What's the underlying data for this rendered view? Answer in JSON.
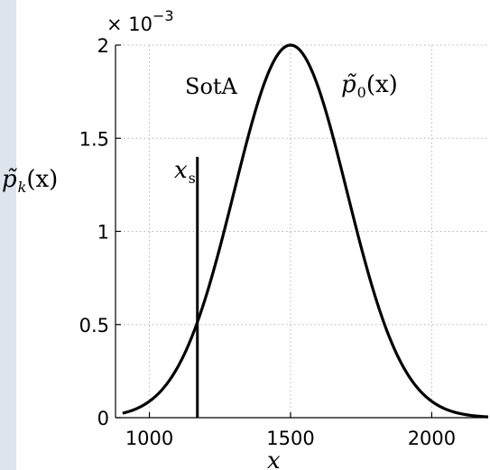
{
  "chart_data": {
    "type": "line",
    "title": "",
    "xlabel": "x",
    "ylabel": "p̃",
    "ylabel_sub": "k",
    "ylabel_arg": "(x)",
    "y_multiplier": "× 10",
    "y_multiplier_exp": "−3",
    "xlim": [
      880,
      2200
    ],
    "ylim": [
      0,
      2
    ],
    "x_ticks": [
      1000,
      1500,
      2000
    ],
    "x_tick_labels": [
      "1000",
      "1500",
      "2000"
    ],
    "y_ticks": [
      0,
      0.5,
      1,
      1.5,
      2
    ],
    "y_tick_labels": [
      "0",
      "0.5",
      "1",
      "1.5",
      "2"
    ],
    "grid": true,
    "series": [
      {
        "label_base": "p̃",
        "label_sub": "0",
        "label_arg": "(x)",
        "distribution": "gaussian",
        "mean": 1500,
        "std": 200,
        "peak": 2,
        "x_start": 905,
        "x_end": 2200
      }
    ],
    "annotations": [
      {
        "type": "vline",
        "x": 1170,
        "y_top": 1.4,
        "label_base": "x",
        "label_sub": "s"
      },
      {
        "type": "text",
        "text": "SotA"
      }
    ]
  }
}
